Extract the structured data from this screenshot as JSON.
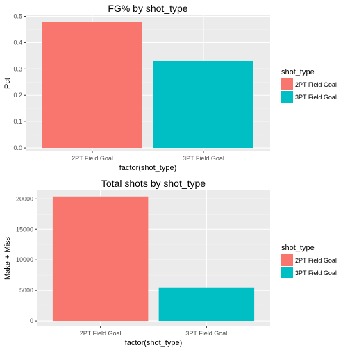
{
  "chart_data": [
    {
      "type": "bar",
      "title": "FG% by shot_type",
      "xlabel": "factor(shot_type)",
      "ylabel": "Pct",
      "categories": [
        "2PT Field Goal",
        "3PT Field Goal"
      ],
      "values": [
        0.48,
        0.33
      ],
      "ylim": [
        -0.013,
        0.504
      ],
      "yticks": [
        0,
        0.1,
        0.2,
        0.3,
        0.4,
        0.5
      ],
      "ytick_labels": [
        "0.0",
        "0.1",
        "0.2",
        "0.3",
        "0.4",
        "0.5"
      ],
      "grid": true,
      "legend": {
        "title": "shot_type",
        "placement": "right",
        "entries": [
          "2PT Field Goal",
          "3PT Field Goal"
        ]
      },
      "colors": [
        "#F8766D",
        "#00BFC4"
      ]
    },
    {
      "type": "bar",
      "title": "Total shots by shot_type",
      "xlabel": "factor(shot_type)",
      "ylabel": "Make + Miss",
      "categories": [
        "2PT Field Goal",
        "3PT Field Goal"
      ],
      "values": [
        20400,
        5500
      ],
      "ylim": [
        -900,
        21400
      ],
      "yticks": [
        0,
        5000,
        10000,
        15000,
        20000
      ],
      "ytick_labels": [
        "0",
        "5000",
        "10000",
        "15000",
        "20000"
      ],
      "grid": true,
      "legend": {
        "title": "shot_type",
        "placement": "right",
        "entries": [
          "2PT Field Goal",
          "3PT Field Goal"
        ]
      },
      "colors": [
        "#F8766D",
        "#00BFC4"
      ]
    }
  ],
  "theme": {
    "panel_background": "#EBEBEB",
    "grid_major": "#FFFFFF",
    "grid_minor": "#F2F2F2",
    "tick_color": "#333333"
  }
}
